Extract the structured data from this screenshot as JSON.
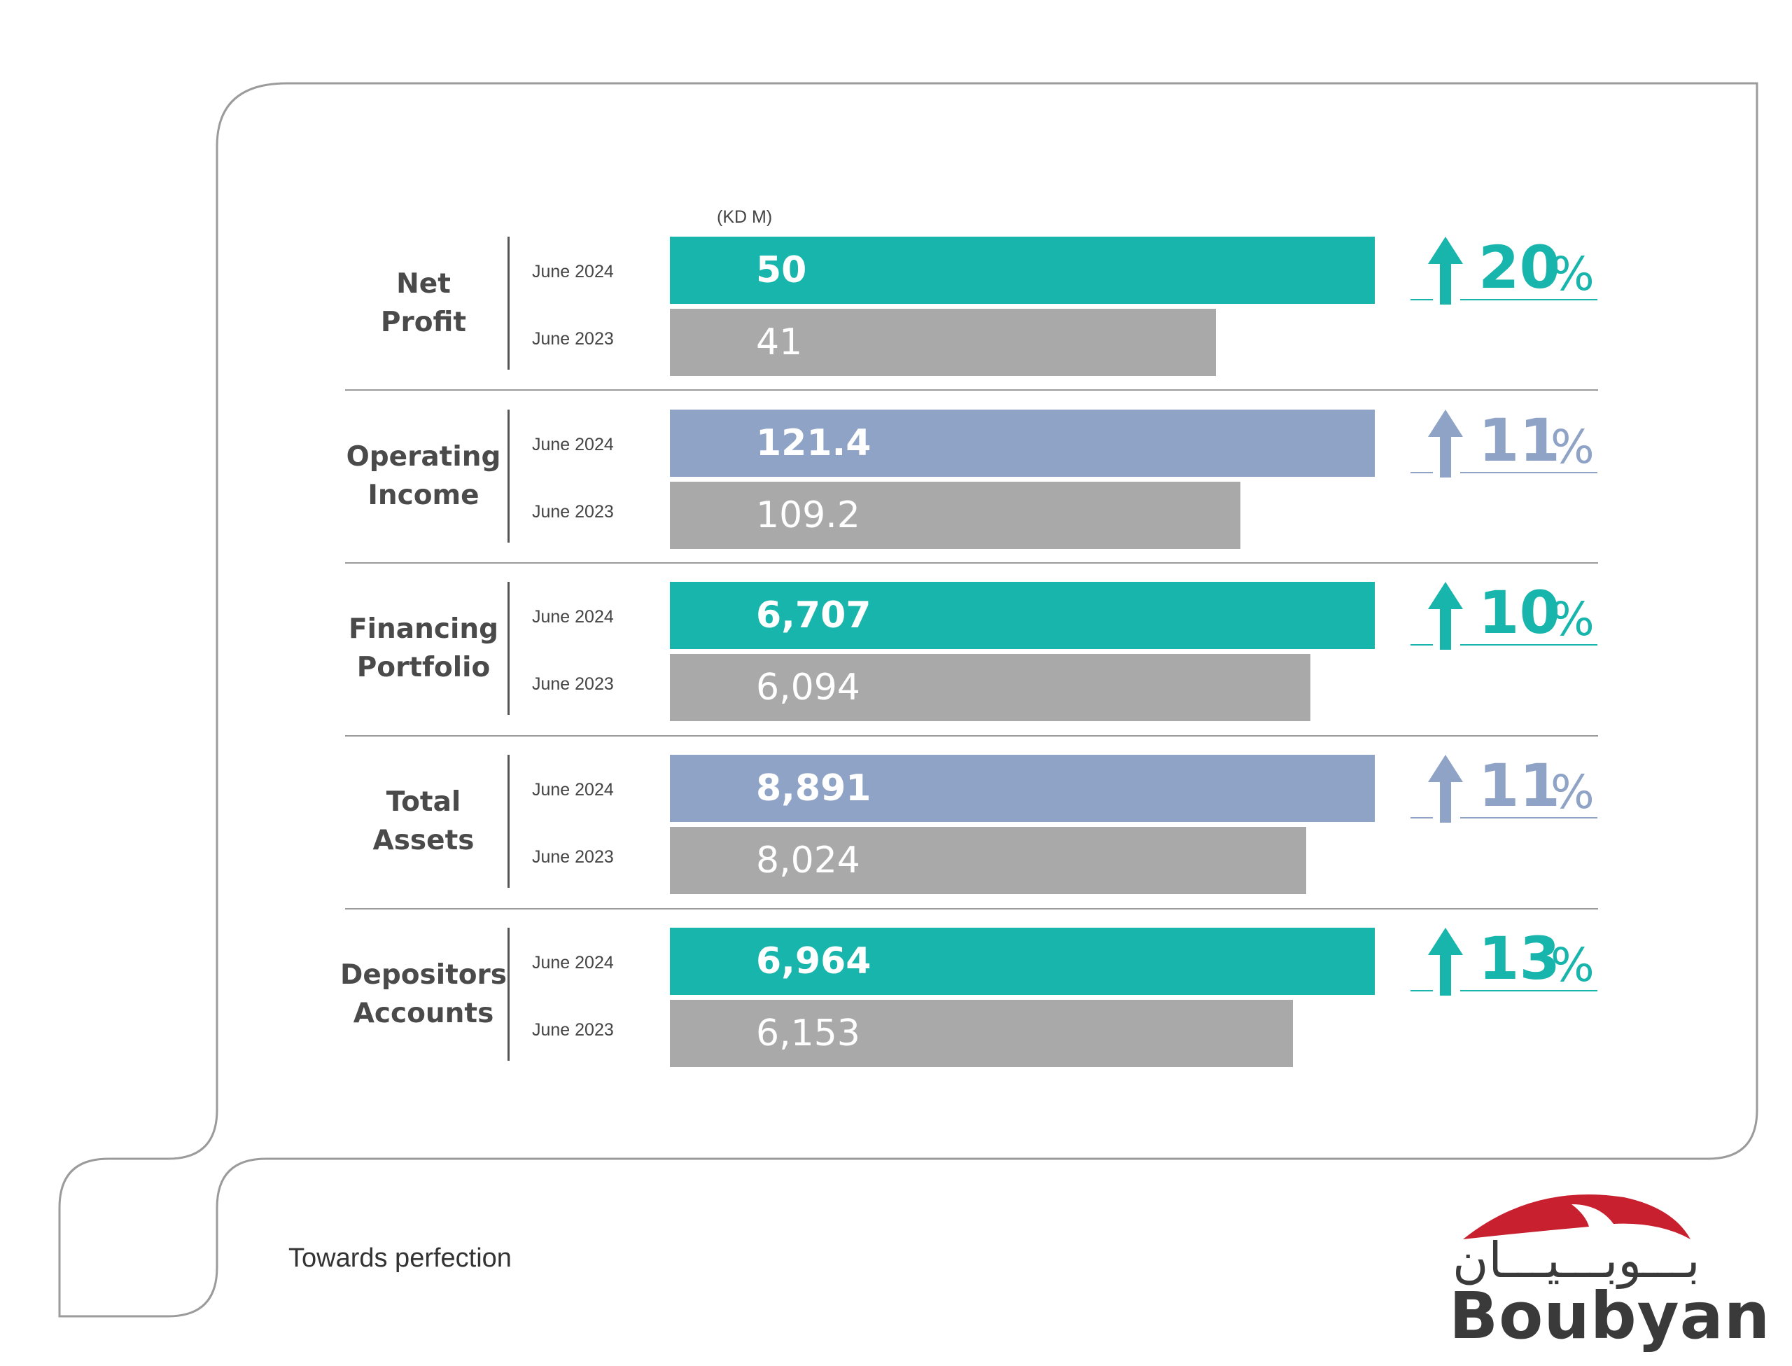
{
  "chart_data": {
    "type": "bar",
    "orientation": "horizontal",
    "unit_label": "(KD M)",
    "categories": [
      "Net\nProfit",
      "Operating\nIncome",
      "Financing\nPortfolio",
      "Total\nAssets",
      "Depositors\nAccounts"
    ],
    "periods": [
      "June 2024",
      "June 2023"
    ],
    "groups": [
      {
        "category": "Net Profit",
        "line1": "Net",
        "line2": "Profit",
        "current": 50,
        "current_label": "50",
        "previous": 41,
        "previous_label": "41",
        "growth": "20",
        "growth_symbol": "%",
        "color": "#17b5ac"
      },
      {
        "category": "Operating Income",
        "line1": "Operating",
        "line2": "Income",
        "current": 121.4,
        "current_label": "121.4",
        "previous": 109.2,
        "previous_label": "109.2",
        "growth": "11",
        "growth_symbol": "%",
        "color": "#8fa3c6"
      },
      {
        "category": "Financing Portfolio",
        "line1": "Financing",
        "line2": "Portfolio",
        "current": 6707,
        "current_label": "6,707",
        "previous": 6094,
        "previous_label": "6,094",
        "growth": "10",
        "growth_symbol": "%",
        "color": "#17b5ac"
      },
      {
        "category": "Total Assets",
        "line1": "Total",
        "line2": "Assets",
        "current": 8891,
        "current_label": "8,891",
        "previous": 8024,
        "previous_label": "8,024",
        "growth": "11",
        "growth_symbol": "%",
        "color": "#8fa3c6"
      },
      {
        "category": "Depositors Accounts",
        "line1": "Depositors",
        "line2": "Accounts",
        "current": 6964,
        "current_label": "6,964",
        "previous": 6153,
        "previous_label": "6,153",
        "growth": "13",
        "growth_symbol": "%",
        "color": "#17b5ac"
      }
    ],
    "previous_color": "#a9a9aa"
  },
  "footer": {
    "tagline": "Towards perfection",
    "logo_text": "Boubyan",
    "logo_arabic": "بـــوبـــيـــان",
    "logo_arc_color": "#c8202f"
  }
}
